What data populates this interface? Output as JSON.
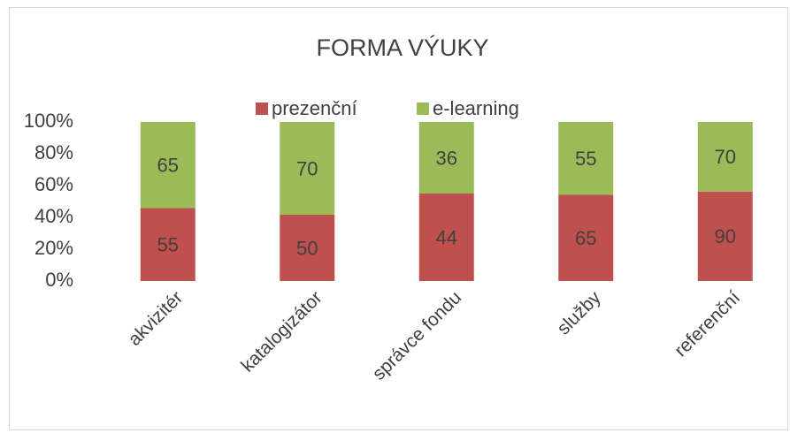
{
  "chart_data": {
    "type": "bar",
    "stacking": "percent",
    "title": "FORMA VÝUKY",
    "categories": [
      "akvizitér",
      "katalogizátor",
      "správce fondu",
      "služby",
      "referenční"
    ],
    "series": [
      {
        "name": "prezenční",
        "color": "#c0504d",
        "values": [
          55,
          50,
          44,
          65,
          90
        ]
      },
      {
        "name": "e-learning",
        "color": "#9bbb59",
        "values": [
          65,
          70,
          36,
          55,
          70
        ]
      }
    ],
    "ylim": [
      0,
      100
    ],
    "yticks": [
      {
        "value": 0,
        "label": "0%"
      },
      {
        "value": 20,
        "label": "20%"
      },
      {
        "value": 40,
        "label": "40%"
      },
      {
        "value": 60,
        "label": "60%"
      },
      {
        "value": 80,
        "label": "80%"
      },
      {
        "value": 100,
        "label": "100%"
      }
    ],
    "legend": "top"
  }
}
